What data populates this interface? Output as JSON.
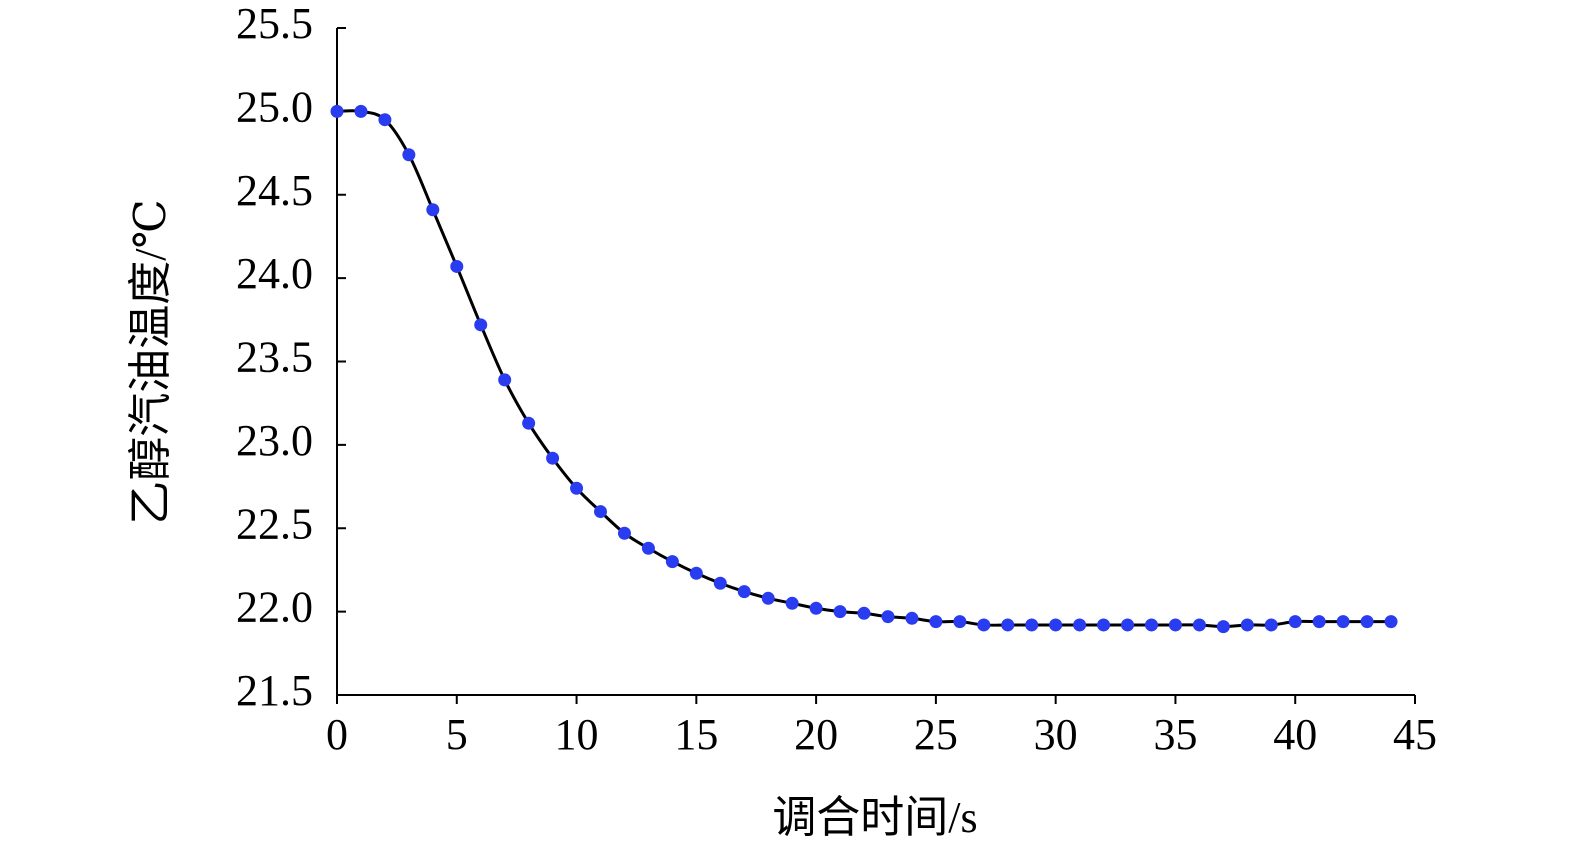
{
  "chart_data": {
    "type": "line",
    "x_label": "调合时间/s",
    "y_label": "乙醇汽油温度/℃",
    "x": [
      0,
      1,
      2,
      3,
      4,
      5,
      6,
      7,
      8,
      9,
      10,
      11,
      12,
      13,
      14,
      15,
      16,
      17,
      18,
      19,
      20,
      21,
      22,
      23,
      24,
      25,
      26,
      27,
      28,
      29,
      30,
      31,
      32,
      33,
      34,
      35,
      36,
      37,
      38,
      39,
      40,
      41,
      42,
      43,
      44
    ],
    "series": [
      {
        "line_color": "#000000",
        "color": "#2a3cf0",
        "values": [
          25.0,
          25.0,
          24.95,
          24.74,
          24.41,
          24.07,
          23.72,
          23.39,
          23.13,
          22.92,
          22.74,
          22.6,
          22.47,
          22.38,
          22.3,
          22.23,
          22.17,
          22.12,
          22.08,
          22.05,
          22.02,
          22.0,
          21.99,
          21.97,
          21.96,
          21.94,
          21.94,
          21.92,
          21.92,
          21.92,
          21.92,
          21.92,
          21.92,
          21.92,
          21.92,
          21.92,
          21.92,
          21.91,
          21.92,
          21.92,
          21.94,
          21.94,
          21.94,
          21.94,
          21.94
        ]
      }
    ],
    "xlim": [
      0,
      45
    ],
    "xticks": [
      0,
      5,
      10,
      15,
      20,
      25,
      30,
      35,
      40,
      45
    ],
    "ylim": [
      21.5,
      25.5
    ],
    "yticks": [
      21.5,
      {
        "value": 22,
        "label": "22.0"
      },
      22.5,
      {
        "value": 23,
        "label": "23.0"
      },
      23.5,
      {
        "value": 24,
        "label": "24.0"
      },
      24.5,
      {
        "value": 25,
        "label": "25.0"
      },
      25.5
    ]
  }
}
